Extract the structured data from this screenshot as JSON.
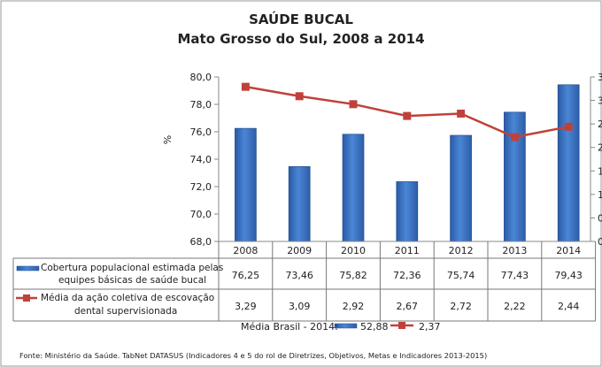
{
  "chart_data": {
    "type": "bar+line",
    "title": "SAÚDE BUCAL",
    "subtitle": "Mato Grosso do Sul, 2008 a 2014",
    "ylabel": "%",
    "categories": [
      "2008",
      "2009",
      "2010",
      "2011",
      "2012",
      "2013",
      "2014"
    ],
    "y_left": {
      "range": [
        68,
        80
      ],
      "ticks": [
        "68,0",
        "70,0",
        "72,0",
        "74,0",
        "76,0",
        "78,0",
        "80,0"
      ]
    },
    "y_right": {
      "range": [
        0,
        3.5
      ],
      "labels_clipped": true
    },
    "grid": false,
    "series": [
      {
        "name": "Cobertura populacional estimada pelas equipes básicas de saúde bucal",
        "type": "bar",
        "axis": "left",
        "color": "#3a72c4",
        "values": [
          76.25,
          73.46,
          75.82,
          72.36,
          75.74,
          77.43,
          79.43
        ],
        "labels": [
          "76,25",
          "73,46",
          "75,82",
          "72,36",
          "75,74",
          "77,43",
          "79,43"
        ]
      },
      {
        "name": "Média da ação coletiva de escovação dental supervisionada",
        "type": "line",
        "axis": "right",
        "color": "#c0413b",
        "values": [
          3.29,
          3.09,
          2.92,
          2.67,
          2.72,
          2.22,
          2.44
        ],
        "labels": [
          "3,29",
          "3,09",
          "2,92",
          "2,67",
          "2,72",
          "2,22",
          "2,44"
        ]
      }
    ],
    "legend_note": {
      "label": "Média Brasil - 2014:",
      "bar_value": "52,88",
      "line_value": "2,37"
    },
    "source": "Fonte: Ministério da Saúde. TabNet DATASUS (Indicadores 4 e 5 do rol de Diretrizes, Objetivos, Metas e Indicadores 2013-2015)"
  }
}
